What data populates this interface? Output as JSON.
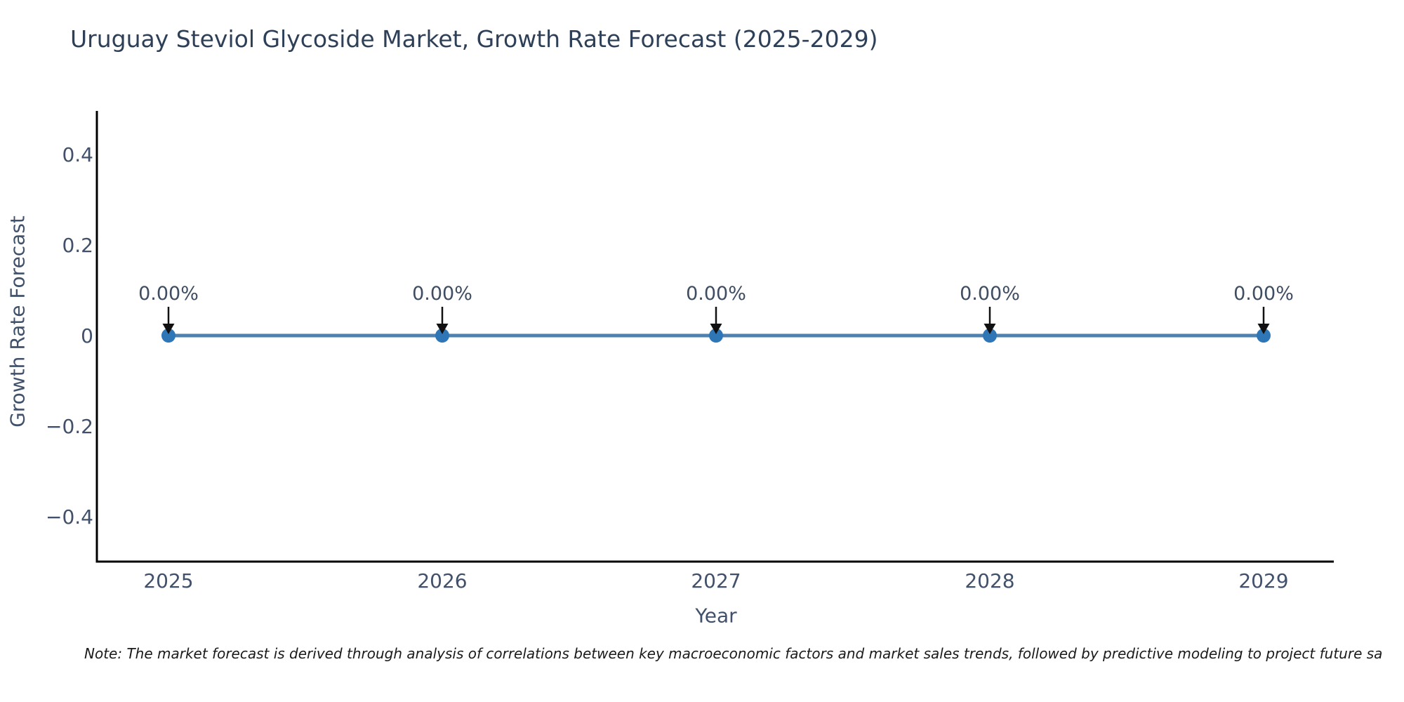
{
  "page": {
    "background": "#ffffff"
  },
  "chart_data": {
    "type": "line",
    "title": "Uruguay Steviol Glycoside Market, Growth Rate Forecast (2025-2029)",
    "xlabel": "Year",
    "ylabel": "Growth Rate Forecast",
    "x": [
      2025,
      2026,
      2027,
      2028,
      2029
    ],
    "series": [
      {
        "name": "Growth Rate Forecast",
        "values": [
          0,
          0,
          0,
          0,
          0
        ]
      }
    ],
    "point_labels": [
      "0.00%",
      "0.00%",
      "0.00%",
      "0.00%",
      "0.00%"
    ],
    "xtick_labels": [
      "2025",
      "2026",
      "2027",
      "2028",
      "2029"
    ],
    "yticks": [
      0.4,
      0.2,
      0,
      -0.2,
      -0.4
    ],
    "ytick_labels": [
      "0.4",
      "0.2",
      "0",
      "−0.2",
      "−0.4"
    ],
    "ylim": [
      -0.5,
      0.5
    ],
    "grid": false,
    "legend": false,
    "annotation_arrows": true,
    "colors": {
      "line": "#4e81b0",
      "marker": "#2e76b6",
      "spine": "#000000",
      "tick_label": "#42516b",
      "title": "#2e4057",
      "annotation_text": "#3f4d63",
      "arrow": "#111111"
    }
  },
  "note": {
    "text": "Note: The market forecast is derived through analysis of correlations between key macroeconomic factors and market sales trends, followed by predictive modeling to project future sa"
  }
}
